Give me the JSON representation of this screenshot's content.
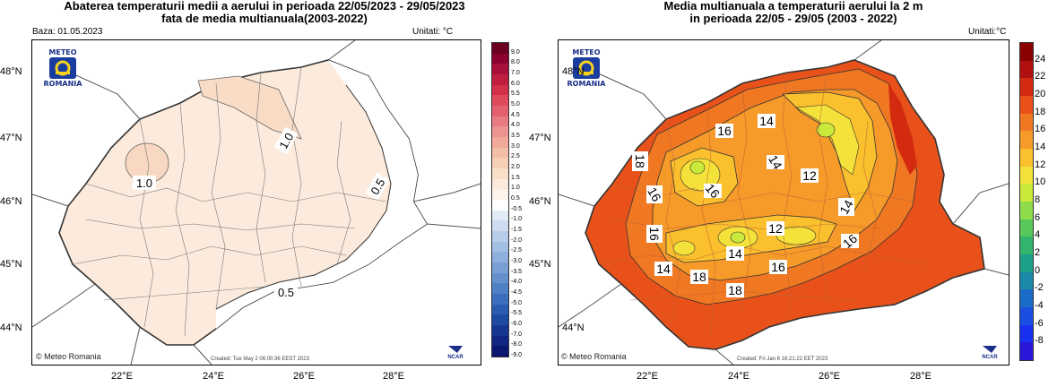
{
  "left": {
    "title": "Abaterea temperaturii medii a aerului in perioada 22/05/2023 - 29/05/2023\nfata de media multianuala(2003-2022)",
    "title_line1": "Abaterea temperaturii medii a aerului in perioada 22/05/2023 - 29/05/2023",
    "title_line2": "fata de media multianuala(2003-2022)",
    "baza": "Baza: 01.05.2023",
    "unitati": "Unitati: °C",
    "logo_top": "METEO",
    "logo_bottom": "ROMANIA",
    "copyright": "© Meteo Romania",
    "created": "Created: Tue May  2 06:00:36 EEST 2023",
    "ncar": "NCAR",
    "lat_labels": [
      "48°N",
      "47°N",
      "46°N",
      "45°N",
      "44°N"
    ],
    "lon_labels": [
      "22°E",
      "24°E",
      "26°E",
      "28°E"
    ],
    "contour_labels": [
      "1.0",
      "1.0",
      "0.5",
      "0.5"
    ],
    "colorbar_ticks": [
      "9.0",
      "8.0",
      "7.0",
      "6.0",
      "5.5",
      "5.0",
      "4.5",
      "4.0",
      "3.5",
      "3.0",
      "2.5",
      "2.0",
      "1.5",
      "1.0",
      "0.5",
      "-0.5",
      "-1.0",
      "-1.5",
      "-2.0",
      "-2.5",
      "-3.0",
      "-3.5",
      "-4.0",
      "-4.5",
      "-5.0",
      "-5.5",
      "-6.0",
      "-7.0",
      "-8.0",
      "-9.0"
    ],
    "colorbar_colors": [
      "#6b0020",
      "#8a0030",
      "#a8103a",
      "#c01e3f",
      "#d2304a",
      "#de4a5a",
      "#e46070",
      "#e87a82",
      "#ec9290",
      "#f0a898",
      "#f3bda6",
      "#f6cfb6",
      "#f9dfc8",
      "#fbeadb",
      "#fdf3ea",
      "#ffffff",
      "#e3ebf7",
      "#cddcf1",
      "#b8cdea",
      "#a3bee3",
      "#8eafdc",
      "#799fd5",
      "#6490ce",
      "#4f80c6",
      "#3b6fbe",
      "#2a5db2",
      "#1f4aa4",
      "#173694",
      "#112583",
      "#0b1670"
    ]
  },
  "right": {
    "title_line1": "Media multianuala a temperaturii aerului la 2 m",
    "title_line2": "in perioada 22/05 - 29/05 (2003 - 2022)",
    "unitati": "Unitati:°C",
    "logo_top": "METEO",
    "logo_bottom": "ROMANIA",
    "copyright": "© Meteo Romania",
    "created": "Created: Fri Jan  6 16:21:22 EET 2023",
    "ncar": "NCAR",
    "lat_labels": [
      "48°N",
      "47°N",
      "46°N",
      "45°N",
      "44°N"
    ],
    "lon_labels": [
      "22°E",
      "24°E",
      "26°E",
      "28°E"
    ],
    "contour_labels": [
      "14",
      "16",
      "18",
      "16",
      "16",
      "14",
      "12",
      "14",
      "16",
      "12",
      "14",
      "16",
      "14",
      "18",
      "18",
      "16"
    ],
    "colorbar_ticks": [
      "24",
      "22",
      "20",
      "18",
      "16",
      "14",
      "12",
      "10",
      "8",
      "6",
      "4",
      "2",
      "0",
      "-2",
      "-4",
      "-6",
      "-8"
    ],
    "colorbar_colors": [
      "#8b0000",
      "#b01010",
      "#d42a10",
      "#e8521a",
      "#f07822",
      "#f69a2a",
      "#fbc02e",
      "#f4e23a",
      "#c9ea3a",
      "#8fdc4a",
      "#58c85a",
      "#32b46e",
      "#1ea08a",
      "#1a8aa8",
      "#1a6cc8",
      "#1a4ee0",
      "#1a30f0",
      "#2a18d8"
    ]
  }
}
